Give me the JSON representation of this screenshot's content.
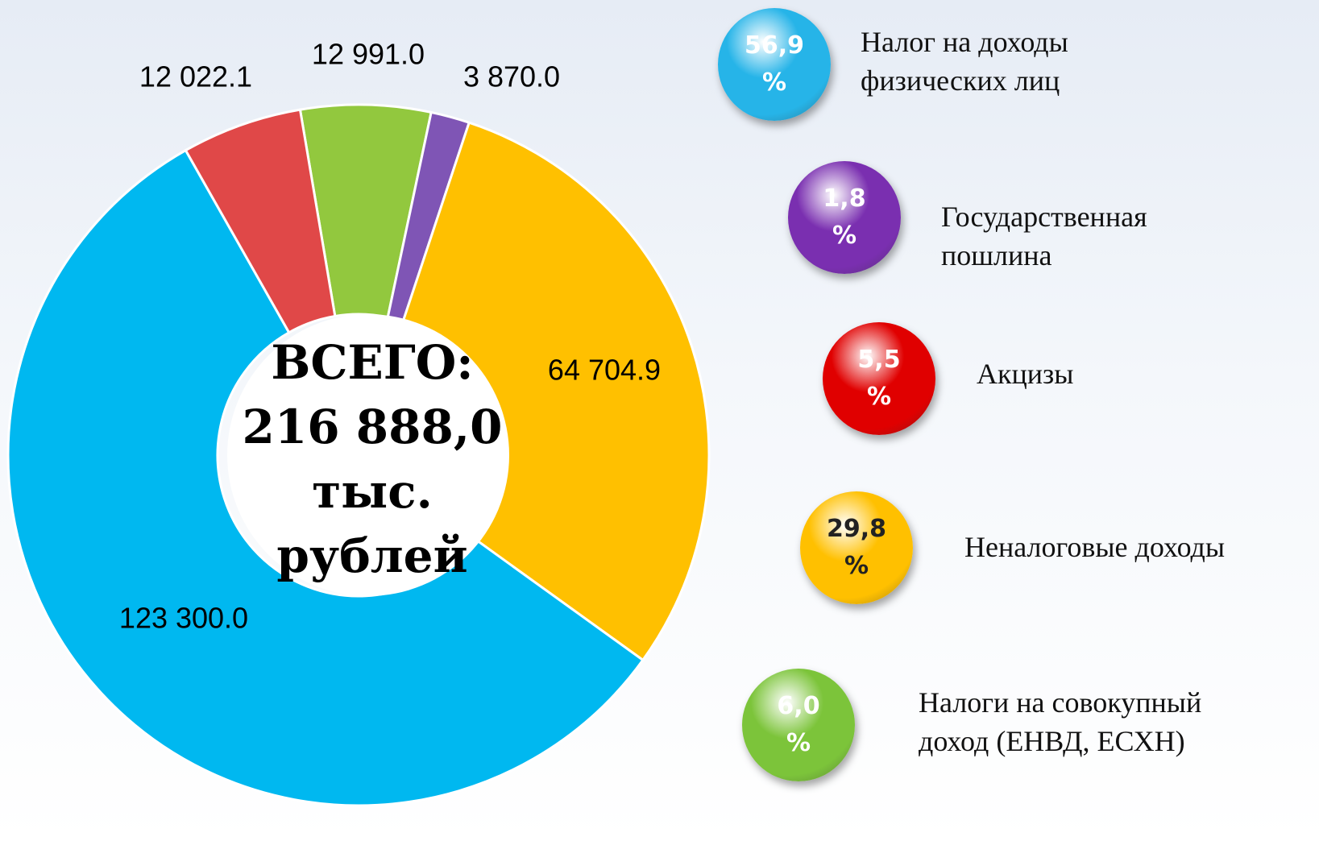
{
  "chart_data": {
    "type": "donut",
    "start_angle": -9.6,
    "categories": [
      "Налоги на совокупный\nдоход (ЕНВД, ЕСХН)",
      "Государственная\nпошлина",
      "Неналоговые доходы",
      "Налог на доходы\nфизических лиц",
      "Акцизы"
    ],
    "values": [
      12991.0,
      3870.0,
      64704.9,
      123300.0,
      12022.1
    ],
    "value_labels": [
      "12 991.0",
      "3 870.0",
      "64 704.9",
      "123 300.0",
      "12 022.1"
    ],
    "colors": [
      "#92c83e",
      "#7f55b5",
      "#ffc000",
      "#00b8f0",
      "#e04848"
    ],
    "percents": [
      6.0,
      1.8,
      29.8,
      56.9,
      5.5
    ],
    "percent_labels": [
      "6,0\n%",
      "1,8\n%",
      "29,8\n%",
      "56,9\n%",
      "5,5\n%"
    ],
    "bubble_colors": [
      "#7cc43a",
      "#7a2fb0",
      "#ffc000",
      "#26b4e8",
      "#e00000"
    ],
    "center_lines": [
      "ВСЕГО:",
      "216 888,0",
      "тыс.",
      "рублей"
    ]
  }
}
